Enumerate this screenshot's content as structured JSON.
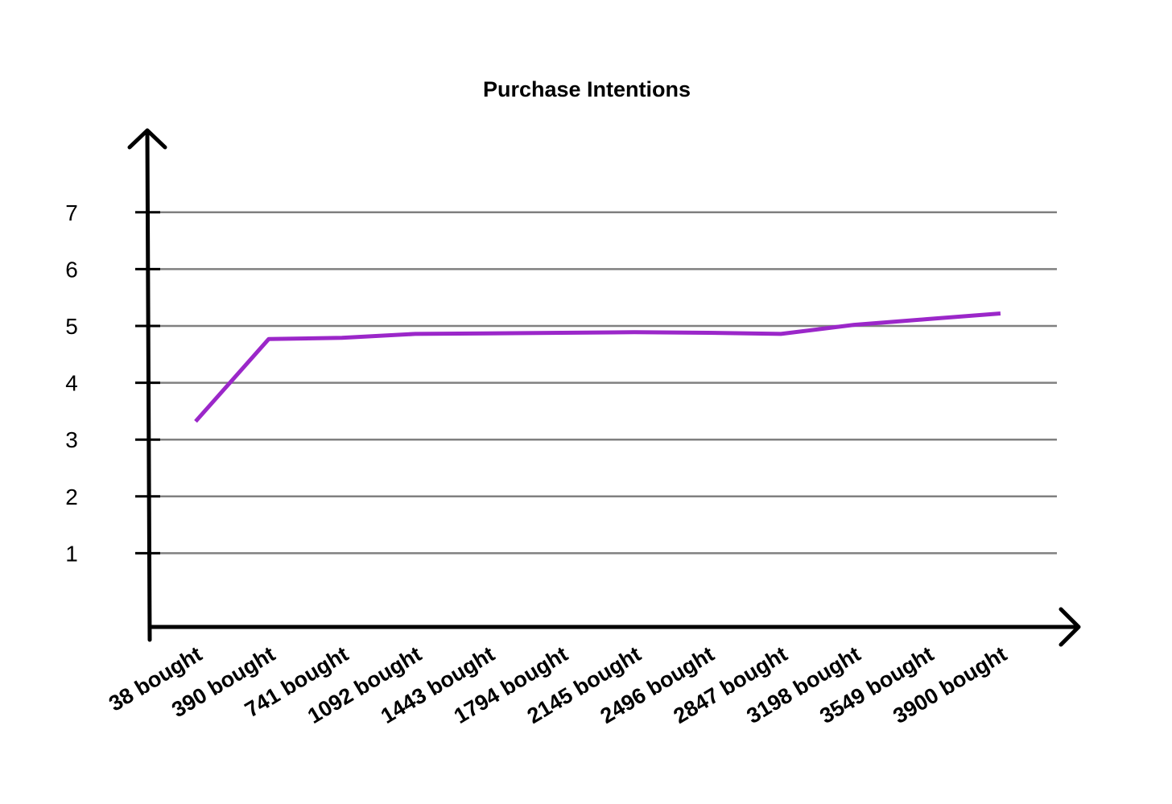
{
  "chart_data": {
    "type": "line",
    "title": "Purchase Intentions",
    "xlabel": "",
    "ylabel": "",
    "categories": [
      "38 bought",
      "390 bought",
      "741 bought",
      "1092 bought",
      "1443 bought",
      "1794 bought",
      "2145 bought",
      "2496 bought",
      "2847 bought",
      "3198 bought",
      "3549 bought",
      "3900 bought"
    ],
    "yticks": [
      "1",
      "2",
      "3",
      "4",
      "5",
      "6",
      "7"
    ],
    "ylim": [
      0,
      7.8
    ],
    "grid": true,
    "legend": "none",
    "series": [
      {
        "color": "#9b27c9",
        "values": [
          3.32,
          4.77,
          4.79,
          4.86,
          4.87,
          4.88,
          4.89,
          4.88,
          4.86,
          5.02,
          5.12,
          5.22
        ]
      }
    ]
  }
}
